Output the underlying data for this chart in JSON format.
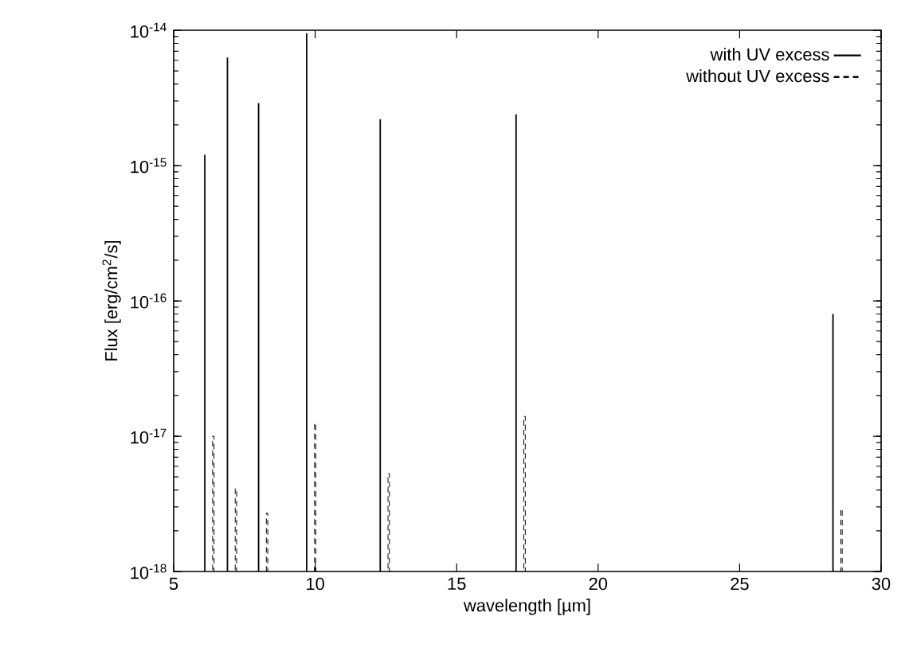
{
  "chart_data": {
    "type": "bar",
    "xlabel": "wavelength [µm]",
    "ylabel": "Flux [erg/cm$^{2}$/s]",
    "log": "y",
    "marker": "none",
    "legend": "top right",
    "grid": false,
    "xlim": [
      5,
      30
    ],
    "xticks": [
      5,
      10,
      15,
      20,
      25,
      30
    ],
    "ylim": [
      1e-18,
      1e-14
    ],
    "yticks": [
      {
        "value": 1e-18,
        "label": "10$^{-18}$"
      },
      {
        "value": 1e-17,
        "label": "10$^{-17}$"
      },
      {
        "value": 1e-16,
        "label": "10$^{-16}$"
      },
      {
        "value": 1e-15,
        "label": "10$^{-15}$"
      },
      {
        "value": 1e-14,
        "label": "10$^{-14}$"
      }
    ],
    "series": [
      {
        "name": "with UV excess",
        "color": "#000000",
        "line_style": "solid",
        "x": [
          6.1,
          6.9,
          8.0,
          9.7,
          12.3,
          17.1,
          28.3
        ],
        "values": [
          1.2e-15,
          6.3e-15,
          2.9e-15,
          9.5e-15,
          2.2e-15,
          2.4e-15,
          8e-17
        ]
      },
      {
        "name": "without UV excess",
        "color": "#000000",
        "line_style": "dashed",
        "x": [
          6.4,
          7.2,
          8.3,
          10.0,
          12.6,
          17.4,
          28.6
        ],
        "values": [
          1e-17,
          4.1e-18,
          2.7e-18,
          1.25e-17,
          5.3e-18,
          1.4e-17,
          2.9e-18
        ]
      }
    ]
  }
}
